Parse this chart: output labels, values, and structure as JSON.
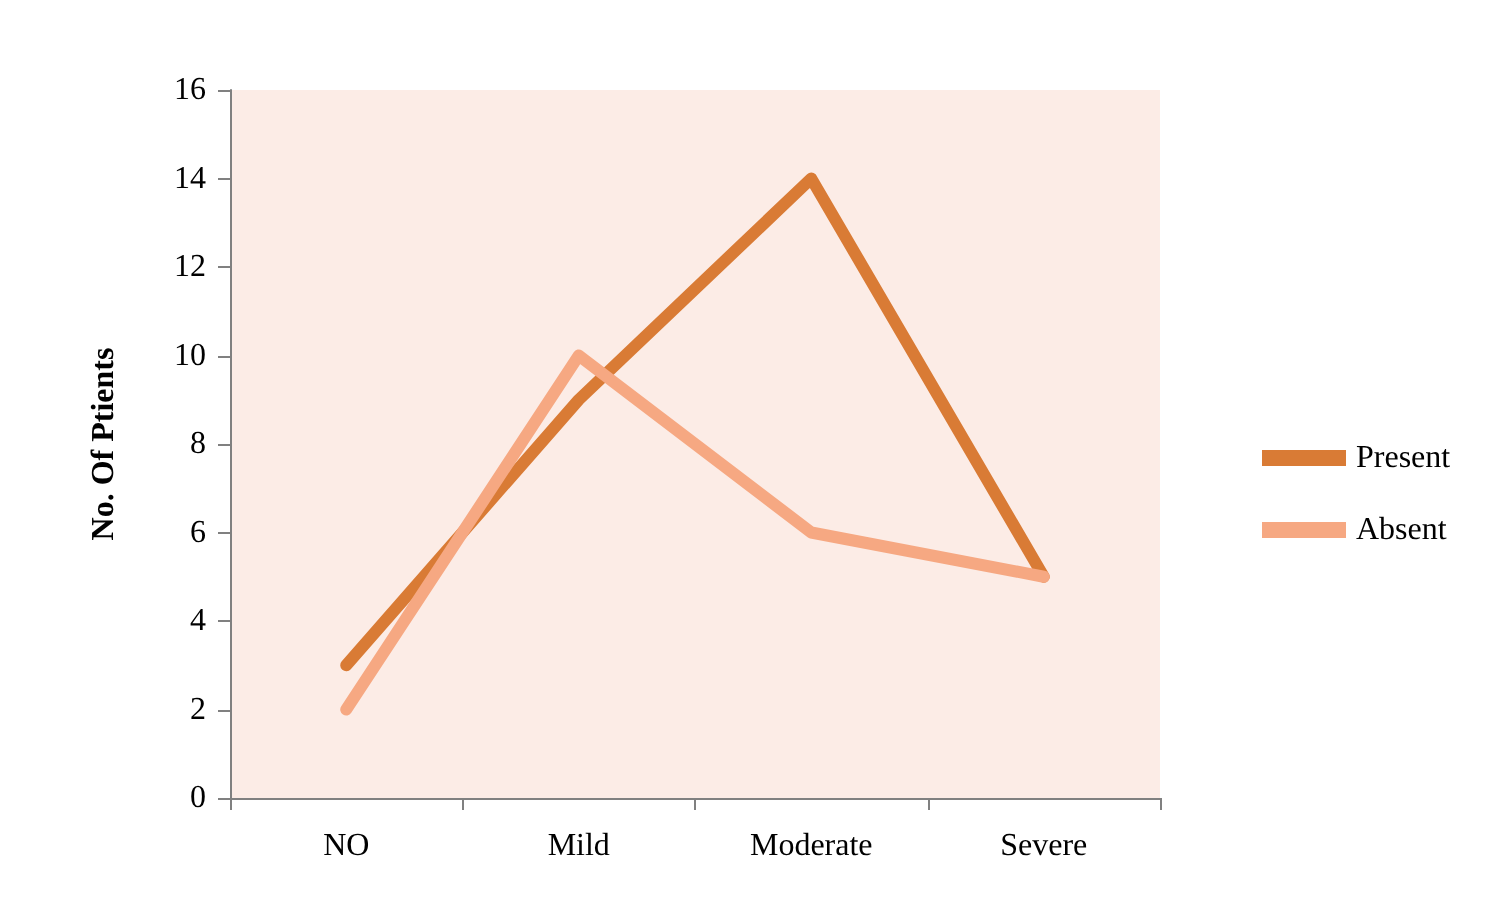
{
  "chart_data": {
    "type": "line",
    "ylabel": "No. Of Ptients",
    "categories": [
      "NO",
      "Mild",
      "Moderate",
      "Severe"
    ],
    "series": [
      {
        "name": "Present",
        "color": "#d97b35",
        "values": [
          3,
          9,
          14,
          5
        ]
      },
      {
        "name": "Absent",
        "color": "#f6a882",
        "values": [
          2,
          10,
          6,
          5
        ]
      }
    ],
    "ylim": [
      0,
      16
    ],
    "yticks": [
      0,
      2,
      4,
      6,
      8,
      10,
      12,
      14,
      16
    ],
    "grid": false,
    "legend": "right",
    "marker": "none",
    "line_style": "solid"
  }
}
